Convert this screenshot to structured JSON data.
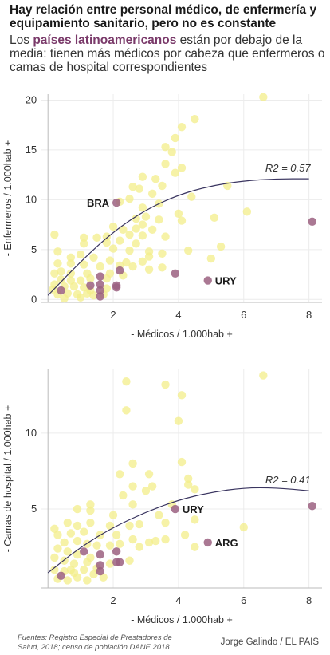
{
  "header": {
    "title": "Hay relación entre personal médico, de enfermería y equipamiento sanitario, pero no es constante",
    "subtitle_pre": "Los ",
    "subtitle_hl": "países latinoamericanos",
    "subtitle_post": " están por debajo de la media: tienen más médicos por cabeza que enfermeros o camas de hospital correspondientes"
  },
  "colors": {
    "other": "#f3ee8a",
    "latam": "#9b6080",
    "curve": "#3a3560",
    "axis": "#bbbbbb",
    "grid": "#ececec"
  },
  "footer": {
    "source": "Fuentes: Registro Especial de Prestadores de Salud, 2018; censo de población DANE 2018.",
    "byline": "Jorge Galindo / EL PAIS"
  },
  "chart_data": [
    {
      "type": "scatter",
      "xlabel": "- Médicos / 1.000hab +",
      "ylabel": "- Enfermeros / 1.000hab +",
      "xlim": [
        -0.2,
        8.4
      ],
      "ylim": [
        -0.3,
        20.6
      ],
      "xticks": [
        2,
        4,
        6,
        8
      ],
      "yticks": [
        0,
        5,
        10,
        15,
        20
      ],
      "grid": true,
      "fit_label": "R2 = 0.57",
      "fit_curve": [
        [
          0,
          0.4
        ],
        [
          1,
          3.8
        ],
        [
          2,
          6.8
        ],
        [
          3,
          9.0
        ],
        [
          4,
          10.5
        ],
        [
          5,
          11.4
        ],
        [
          6,
          11.9
        ],
        [
          7,
          12.1
        ],
        [
          8,
          12.1
        ]
      ],
      "labels": [
        {
          "text": "BRA",
          "x": 2.1,
          "y": 9.7,
          "side": "left"
        },
        {
          "text": "URY",
          "x": 4.9,
          "y": 1.9,
          "side": "right"
        }
      ],
      "series": [
        {
          "name": "latam",
          "points": [
            [
              2.1,
              9.7
            ],
            [
              4.9,
              1.9
            ],
            [
              8.1,
              7.8
            ],
            [
              3.9,
              2.6
            ],
            [
              2.2,
              2.9
            ],
            [
              1.6,
              2.3
            ],
            [
              1.6,
              0.9
            ],
            [
              1.6,
              0.3
            ],
            [
              1.3,
              1.4
            ],
            [
              1.6,
              1.5
            ],
            [
              2.1,
              1.2
            ],
            [
              2.1,
              1.4
            ],
            [
              0.4,
              0.9
            ]
          ]
        },
        {
          "name": "other",
          "points": [
            [
              6.6,
              20.3
            ],
            [
              4.5,
              18.1
            ],
            [
              4.1,
              17.3
            ],
            [
              3.9,
              16.2
            ],
            [
              3.6,
              15.3
            ],
            [
              3.8,
              14.8
            ],
            [
              3.6,
              13.6
            ],
            [
              4.1,
              13.2
            ],
            [
              3.9,
              12.7
            ],
            [
              3.3,
              12.1
            ],
            [
              3.5,
              11.4
            ],
            [
              5.5,
              11.4
            ],
            [
              2.9,
              12.3
            ],
            [
              2.6,
              11.3
            ],
            [
              2.8,
              11.1
            ],
            [
              3.2,
              10.6
            ],
            [
              2.5,
              10.1
            ],
            [
              2.2,
              9.8
            ],
            [
              4.4,
              10.3
            ],
            [
              2.9,
              9.2
            ],
            [
              3.4,
              9.6
            ],
            [
              4.0,
              8.6
            ],
            [
              3.0,
              8.3
            ],
            [
              2.7,
              8.1
            ],
            [
              3.4,
              8.0
            ],
            [
              4.1,
              7.9
            ],
            [
              5.1,
              8.2
            ],
            [
              6.1,
              8.8
            ],
            [
              2.9,
              7.5
            ],
            [
              2.0,
              7.3
            ],
            [
              2.3,
              7.0
            ],
            [
              2.7,
              7.1
            ],
            [
              3.2,
              7.0
            ],
            [
              2.5,
              6.5
            ],
            [
              2.9,
              6.4
            ],
            [
              3.6,
              6.3
            ],
            [
              1.8,
              6.3
            ],
            [
              1.5,
              6.2
            ],
            [
              1.1,
              6.2
            ],
            [
              1.1,
              5.6
            ],
            [
              1.8,
              5.7
            ],
            [
              2.2,
              5.9
            ],
            [
              2.7,
              5.6
            ],
            [
              2.0,
              5.1
            ],
            [
              2.5,
              4.9
            ],
            [
              3.1,
              4.8
            ],
            [
              3.5,
              4.6
            ],
            [
              4.3,
              4.9
            ],
            [
              5.3,
              5.3
            ],
            [
              5.0,
              4.1
            ],
            [
              3.1,
              4.3
            ],
            [
              2.9,
              3.8
            ],
            [
              2.4,
              3.7
            ],
            [
              1.9,
              3.9
            ],
            [
              1.4,
              4.2
            ],
            [
              1.0,
              4.5
            ],
            [
              0.7,
              4.2
            ],
            [
              0.2,
              6.5
            ],
            [
              0.3,
              4.8
            ],
            [
              0.3,
              3.6
            ],
            [
              0.7,
              3.6
            ],
            [
              1.1,
              3.5
            ],
            [
              1.6,
              3.3
            ],
            [
              2.2,
              3.4
            ],
            [
              2.6,
              3.3
            ],
            [
              3.1,
              3.0
            ],
            [
              3.5,
              3.2
            ],
            [
              0.2,
              2.6
            ],
            [
              0.4,
              2.8
            ],
            [
              0.7,
              2.6
            ],
            [
              1.2,
              2.6
            ],
            [
              1.9,
              2.6
            ],
            [
              2.3,
              2.4
            ],
            [
              0.4,
              2.0
            ],
            [
              0.7,
              1.9
            ],
            [
              1.0,
              1.9
            ],
            [
              1.3,
              2.1
            ],
            [
              1.8,
              2.1
            ],
            [
              0.2,
              1.5
            ],
            [
              0.5,
              1.3
            ],
            [
              0.8,
              1.3
            ],
            [
              1.1,
              1.2
            ],
            [
              1.3,
              0.9
            ],
            [
              1.8,
              1.1
            ],
            [
              0.3,
              0.5
            ],
            [
              0.6,
              0.6
            ],
            [
              0.9,
              0.5
            ],
            [
              1.2,
              0.6
            ],
            [
              1.7,
              0.5
            ],
            [
              0.15,
              1.0
            ],
            [
              0.5,
              0.1
            ],
            [
              1.0,
              0.2
            ],
            [
              1.4,
              0.4
            ]
          ]
        }
      ]
    },
    {
      "type": "scatter",
      "xlabel": "- Médicos / 1.000hab +",
      "ylabel": "- Camas de hospital / 1.000hab +",
      "xlim": [
        -0.2,
        8.4
      ],
      "ylim": [
        -0.2,
        14.2
      ],
      "xticks": [
        2,
        4,
        6,
        8
      ],
      "yticks": [
        5,
        10
      ],
      "grid": true,
      "fit_label": "R2 = 0.41",
      "fit_curve": [
        [
          0,
          0.8
        ],
        [
          1,
          2.5
        ],
        [
          2,
          3.8
        ],
        [
          3,
          4.8
        ],
        [
          4,
          5.6
        ],
        [
          5,
          6.1
        ],
        [
          6,
          6.4
        ],
        [
          7,
          6.4
        ],
        [
          8,
          6.2
        ]
      ],
      "labels": [
        {
          "text": "URY",
          "x": 3.9,
          "y": 5.0,
          "side": "right"
        },
        {
          "text": "ARG",
          "x": 4.9,
          "y": 2.8,
          "side": "right"
        }
      ],
      "series": [
        {
          "name": "latam",
          "points": [
            [
              3.9,
              5.0
            ],
            [
              4.9,
              2.8
            ],
            [
              8.1,
              5.2
            ],
            [
              2.1,
              2.2
            ],
            [
              1.6,
              2.0
            ],
            [
              1.6,
              1.3
            ],
            [
              1.6,
              0.9
            ],
            [
              1.1,
              2.2
            ],
            [
              2.1,
              1.5
            ],
            [
              2.2,
              1.5
            ],
            [
              0.4,
              0.6
            ]
          ]
        },
        {
          "name": "other",
          "points": [
            [
              6.6,
              13.8
            ],
            [
              2.4,
              13.4
            ],
            [
              3.6,
              13.2
            ],
            [
              4.1,
              12.5
            ],
            [
              2.4,
              11.5
            ],
            [
              4.0,
              10.8
            ],
            [
              4.1,
              8.1
            ],
            [
              2.6,
              8.0
            ],
            [
              2.2,
              7.3
            ],
            [
              3.1,
              7.3
            ],
            [
              4.3,
              7.0
            ],
            [
              4.3,
              6.6
            ],
            [
              2.6,
              6.5
            ],
            [
              3.0,
              6.2
            ],
            [
              3.2,
              6.5
            ],
            [
              4.5,
              6.3
            ],
            [
              2.3,
              5.9
            ],
            [
              3.8,
              5.3
            ],
            [
              2.6,
              5.3
            ],
            [
              1.3,
              5.3
            ],
            [
              0.9,
              5.0
            ],
            [
              1.3,
              4.9
            ],
            [
              2.0,
              4.6
            ],
            [
              3.4,
              4.6
            ],
            [
              4.5,
              4.3
            ],
            [
              3.6,
              4.1
            ],
            [
              2.8,
              4.0
            ],
            [
              2.5,
              3.9
            ],
            [
              1.9,
              3.9
            ],
            [
              1.3,
              4.1
            ],
            [
              0.9,
              3.9
            ],
            [
              0.6,
              4.1
            ],
            [
              0.2,
              3.7
            ],
            [
              0.3,
              3.3
            ],
            [
              0.7,
              3.4
            ],
            [
              1.1,
              3.5
            ],
            [
              1.6,
              3.3
            ],
            [
              2.1,
              3.3
            ],
            [
              2.6,
              3.0
            ],
            [
              3.1,
              2.8
            ],
            [
              3.6,
              3.0
            ],
            [
              4.2,
              3.3
            ],
            [
              4.5,
              2.5
            ],
            [
              6.0,
              3.8
            ],
            [
              0.5,
              2.8
            ],
            [
              0.9,
              2.9
            ],
            [
              1.2,
              2.7
            ],
            [
              1.5,
              2.6
            ],
            [
              1.9,
              2.6
            ],
            [
              2.2,
              2.7
            ],
            [
              2.8,
              2.5
            ],
            [
              3.3,
              2.9
            ],
            [
              0.3,
              2.4
            ],
            [
              0.6,
              2.2
            ],
            [
              0.9,
              2.0
            ],
            [
              1.3,
              1.8
            ],
            [
              2.5,
              1.6
            ],
            [
              0.2,
              1.8
            ],
            [
              0.5,
              1.6
            ],
            [
              0.8,
              1.4
            ],
            [
              1.2,
              1.5
            ],
            [
              1.9,
              1.4
            ],
            [
              0.2,
              1.0
            ],
            [
              0.5,
              0.9
            ],
            [
              0.8,
              0.8
            ],
            [
              1.1,
              1.0
            ],
            [
              1.4,
              0.7
            ],
            [
              0.3,
              0.4
            ],
            [
              0.6,
              0.3
            ],
            [
              0.9,
              0.5
            ],
            [
              1.2,
              0.3
            ],
            [
              1.7,
              0.5
            ],
            [
              0.7,
              1.0
            ],
            [
              1.5,
              1.1
            ]
          ]
        }
      ]
    }
  ]
}
